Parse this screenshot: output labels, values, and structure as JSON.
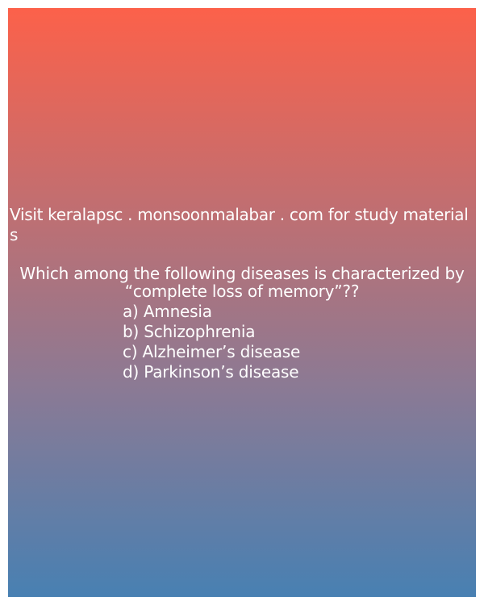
{
  "promo": {
    "text": "Visit keralapsc . monsoonmalabar . com for study materials"
  },
  "question": {
    "line1": "Which among the following diseases is characterized by",
    "line2": "“complete loss of memory”??"
  },
  "options": [
    {
      "label": "a) Amnesia"
    },
    {
      "label": "b) Schizophrenia"
    },
    {
      "label": "c) Alzheimer’s disease"
    },
    {
      "label": "d) Parkinson’s disease"
    }
  ],
  "colors": {
    "gradient_top": "#fc614a",
    "gradient_bottom": "#4880b2",
    "text": "#ffffff"
  }
}
